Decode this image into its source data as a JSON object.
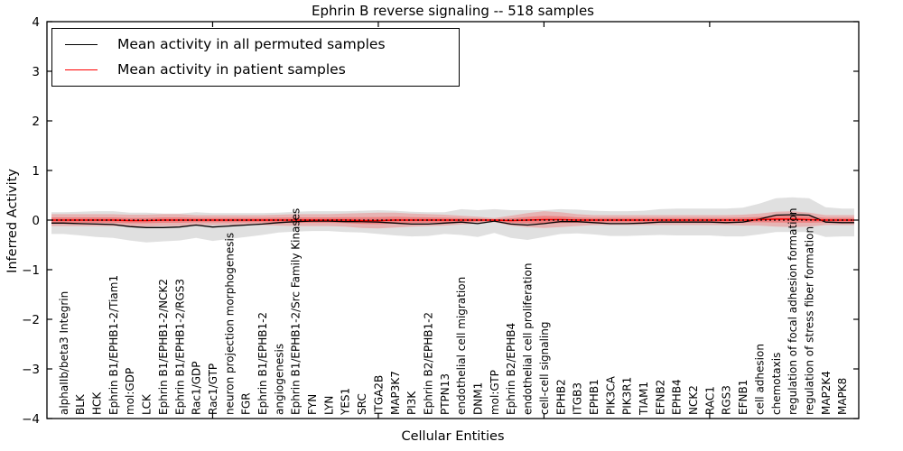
{
  "title": "Ephrin B reverse signaling -- 518 samples",
  "legend": {
    "entries": [
      {
        "label": "Mean activity in all permuted samples",
        "color": "#000000"
      },
      {
        "label": "Mean activity in patient samples",
        "color": "#ff0000"
      }
    ]
  },
  "chart_data": {
    "type": "line",
    "title": "Ephrin B reverse signaling -- 518 samples",
    "xlabel": "Cellular Entities",
    "ylabel": "Inferred Activity",
    "ylim": [
      -4,
      4
    ],
    "grid": false,
    "legend_position": "upper left",
    "y_tick_values": [
      4,
      3,
      2,
      1,
      0,
      -1,
      -2,
      -3,
      -4
    ],
    "y_tick_labels": [
      "4",
      "3",
      "2",
      "1",
      "0",
      "−1",
      "−2",
      "−3",
      "−4"
    ],
    "x_major_tick_values": [
      10,
      20,
      30,
      40
    ],
    "reference_line": {
      "y": 0,
      "style": "dotted",
      "color": "#000000"
    },
    "categories": [
      "alphaIIb/beta3 Integrin",
      "BLK",
      "HCK",
      "Ephrin B1/EPHB1-2/Tiam1",
      "mol:GDP",
      "LCK",
      "Ephrin B1/EPHB1-2/NCK2",
      "Ephrin B1/EPHB1-2/RGS3",
      "Rac1/GDP",
      "Rac1/GTP",
      "neuron projection morphogenesis",
      "FGR",
      "Ephrin B1/EPHB1-2",
      "angiogenesis",
      "Ephrin B1/EPHB1-2/Src Family Kinases",
      "FYN",
      "LYN",
      "YES1",
      "SRC",
      "ITGA2B",
      "MAP3K7",
      "PI3K",
      "Ephrin B2/EPHB1-2",
      "PTPN13",
      "endothelial cell migration",
      "DNM1",
      "mol:GTP",
      "Ephrin B2/EPHB4",
      "endothelial cell proliferation",
      "cell-cell signaling",
      "EPHB2",
      "ITGB3",
      "EPHB1",
      "PIK3CA",
      "PIK3R1",
      "TIAM1",
      "EFNB2",
      "EPHB4",
      "NCK2",
      "RAC1",
      "RGS3",
      "EFNB1",
      "cell adhesion",
      "chemotaxis",
      "regulation of focal adhesion formation",
      "regulation of stress fiber formation",
      "MAP2K4",
      "MAPK8"
    ],
    "series": [
      {
        "name": "Mean activity in all permuted samples",
        "color": "#000000",
        "line_style": "solid",
        "values": [
          -0.06,
          -0.07,
          -0.08,
          -0.09,
          -0.13,
          -0.15,
          -0.15,
          -0.14,
          -0.1,
          -0.14,
          -0.12,
          -0.1,
          -0.08,
          -0.05,
          -0.03,
          -0.02,
          -0.02,
          -0.03,
          -0.03,
          -0.04,
          -0.06,
          -0.08,
          -0.08,
          -0.06,
          -0.04,
          -0.07,
          -0.02,
          -0.08,
          -0.1,
          -0.07,
          -0.03,
          -0.03,
          -0.05,
          -0.07,
          -0.07,
          -0.06,
          -0.04,
          -0.04,
          -0.04,
          -0.04,
          -0.05,
          -0.04,
          0.02,
          0.1,
          0.11,
          0.1,
          -0.04,
          -0.05
        ],
        "band_halfwidth": [
          0.22,
          0.24,
          0.26,
          0.27,
          0.28,
          0.3,
          0.28,
          0.27,
          0.26,
          0.28,
          0.26,
          0.24,
          0.22,
          0.2,
          0.2,
          0.2,
          0.2,
          0.21,
          0.22,
          0.24,
          0.25,
          0.25,
          0.24,
          0.22,
          0.26,
          0.27,
          0.24,
          0.28,
          0.3,
          0.27,
          0.25,
          0.24,
          0.24,
          0.25,
          0.25,
          0.25,
          0.26,
          0.27,
          0.27,
          0.27,
          0.28,
          0.29,
          0.31,
          0.34,
          0.35,
          0.34,
          0.3,
          0.28
        ],
        "band_color": "#000000",
        "band_opacity": 0.12
      },
      {
        "name": "Mean activity in patient samples",
        "color": "#ff0000",
        "line_style": "solid",
        "values": [
          0,
          0,
          0,
          0,
          -0.01,
          -0.01,
          0,
          0,
          0,
          0,
          0,
          0,
          0,
          0,
          0,
          0,
          0,
          0,
          -0.01,
          -0.01,
          0,
          0,
          0,
          0,
          0,
          0,
          0,
          -0.01,
          0,
          0.01,
          0.01,
          0,
          0,
          0,
          0,
          0,
          0,
          0,
          0,
          0,
          0,
          0,
          0.01,
          0.02,
          0.02,
          0.01,
          0,
          0
        ],
        "band_halfwidth": [
          0.12,
          0.12,
          0.12,
          0.12,
          0.12,
          0.12,
          0.12,
          0.12,
          0.1,
          0.1,
          0.1,
          0.1,
          0.1,
          0.11,
          0.12,
          0.12,
          0.12,
          0.13,
          0.15,
          0.16,
          0.15,
          0.13,
          0.12,
          0.11,
          0.09,
          0.07,
          0.04,
          0.1,
          0.14,
          0.17,
          0.15,
          0.12,
          0.1,
          0.1,
          0.1,
          0.1,
          0.1,
          0.1,
          0.1,
          0.1,
          0.1,
          0.11,
          0.12,
          0.15,
          0.16,
          0.14,
          0.1,
          0.1
        ],
        "band_color": "#ff0000",
        "band_opacity": 0.2,
        "inner_band_scale": 0.45,
        "inner_band_opacity": 0.28
      }
    ]
  }
}
